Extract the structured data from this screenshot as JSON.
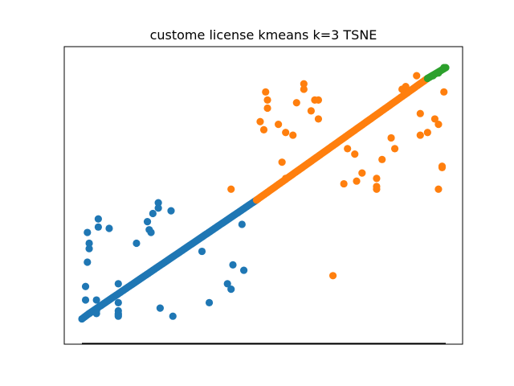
{
  "chart_data": {
    "type": "scatter",
    "title": "custome license kmeans k=3 TSNE",
    "xlabel": "",
    "ylabel": "",
    "xlim": [
      0,
      100
    ],
    "ylim": [
      0,
      100
    ],
    "grid": false,
    "axis_ticks": "none",
    "legend": "none",
    "diagonal_line": {
      "color": "#000000",
      "points": [
        [
          0,
          -5
        ],
        [
          100,
          -5
        ]
      ]
    },
    "series": [
      {
        "color": "#1f77b4",
        "dense_segments": [
          {
            "from": [
              0,
              4
            ],
            "to": [
              2,
              6
            ]
          },
          {
            "from": [
              2,
              6
            ],
            "to": [
              48,
              48
            ]
          }
        ],
        "points": [
          [
            1,
            11
          ],
          [
            1,
            16
          ],
          [
            1.5,
            25
          ],
          [
            1.5,
            36
          ],
          [
            2,
            30
          ],
          [
            2,
            32
          ],
          [
            4.5,
            41
          ],
          [
            4.5,
            38
          ],
          [
            7.5,
            37.5
          ],
          [
            4,
            11
          ],
          [
            4,
            7
          ],
          [
            4,
            6
          ],
          [
            10,
            7
          ],
          [
            10,
            6
          ],
          [
            10,
            10
          ],
          [
            10,
            5.5
          ],
          [
            10,
            5
          ],
          [
            10,
            17
          ],
          [
            15,
            32
          ],
          [
            18,
            40
          ],
          [
            18.5,
            37
          ],
          [
            19,
            36
          ],
          [
            19.5,
            43
          ],
          [
            21,
            47
          ],
          [
            21,
            45
          ],
          [
            24.5,
            44
          ],
          [
            21.5,
            8
          ],
          [
            25,
            5
          ],
          [
            33,
            29
          ],
          [
            35,
            10
          ],
          [
            40,
            17
          ],
          [
            41.5,
            24
          ],
          [
            41,
            15
          ],
          [
            44,
            39
          ],
          [
            44.5,
            22
          ]
        ]
      },
      {
        "color": "#ff7f0e",
        "dense_segments": [
          {
            "from": [
              48,
              48
            ],
            "to": [
              95,
              93
            ]
          }
        ],
        "points": [
          [
            41,
            52
          ],
          [
            49,
            77
          ],
          [
            50,
            74
          ],
          [
            51,
            82
          ],
          [
            51,
            85
          ],
          [
            50.5,
            88
          ],
          [
            54,
            76
          ],
          [
            55,
            62
          ],
          [
            56,
            56
          ],
          [
            56,
            73
          ],
          [
            58,
            72
          ],
          [
            59,
            84
          ],
          [
            61,
            91
          ],
          [
            61,
            89
          ],
          [
            63,
            81
          ],
          [
            64,
            85
          ],
          [
            65,
            85
          ],
          [
            65,
            78
          ],
          [
            69,
            20
          ],
          [
            72,
            54
          ],
          [
            73,
            67
          ],
          [
            75,
            65
          ],
          [
            81,
            52
          ],
          [
            81,
            53
          ],
          [
            81,
            56
          ],
          [
            82.5,
            63
          ],
          [
            85,
            71
          ],
          [
            88,
            89
          ],
          [
            89,
            90
          ],
          [
            93,
            72
          ],
          [
            93,
            80
          ],
          [
            95,
            73
          ],
          [
            98,
            76
          ],
          [
            98,
            52
          ],
          [
            99,
            60
          ],
          [
            99,
            60.5
          ],
          [
            97,
            78
          ],
          [
            92,
            94
          ],
          [
            99.5,
            88
          ],
          [
            75.5,
            55
          ],
          [
            77,
            58
          ],
          [
            86,
            67
          ]
        ]
      },
      {
        "color": "#2ca02c",
        "dense_segments": [
          {
            "from": [
              95,
              93
            ],
            "to": [
              100,
              97
            ]
          }
        ],
        "points": [
          [
            96.5,
            94
          ],
          [
            98,
            95
          ],
          [
            99.5,
            97
          ]
        ]
      }
    ]
  }
}
